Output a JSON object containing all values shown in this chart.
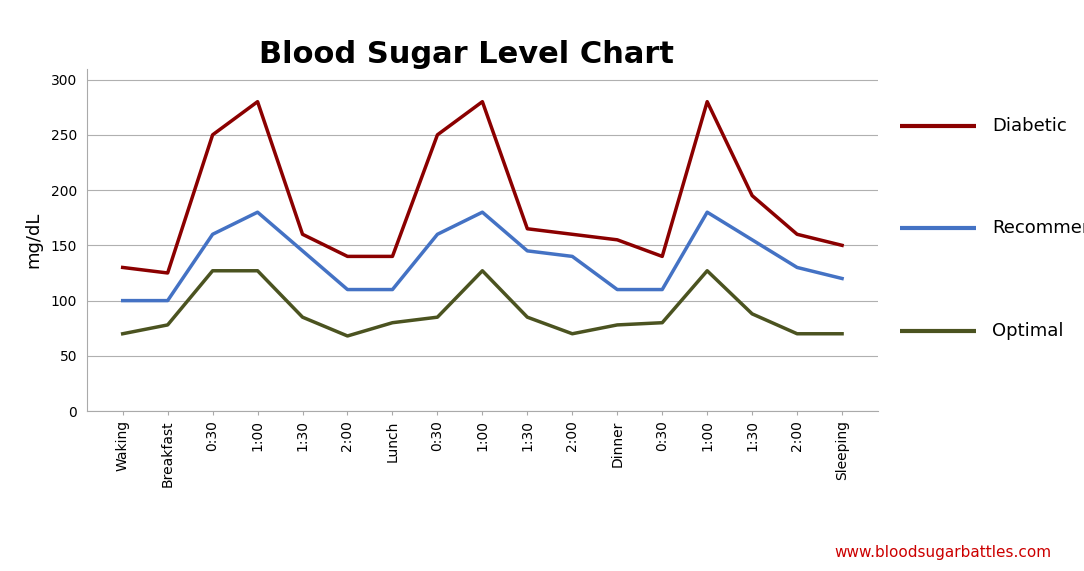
{
  "title": "Blood Sugar Level Chart",
  "title_fontsize": 22,
  "title_fontweight": "bold",
  "ylabel": "mg/dL",
  "ylabel_fontsize": 13,
  "background_color": "#ffffff",
  "plot_bg_color": "#ffffff",
  "x_labels": [
    "Waking",
    "Breakfast",
    "0:30",
    "1:00",
    "1:30",
    "2:00",
    "Lunch",
    "0:30",
    "1:00",
    "1:30",
    "2:00",
    "Dinner",
    "0:30",
    "1:00",
    "1:30",
    "2:00",
    "Sleeping"
  ],
  "diabetic": [
    130,
    125,
    250,
    280,
    160,
    140,
    140,
    250,
    280,
    165,
    160,
    155,
    140,
    280,
    195,
    160,
    150
  ],
  "recommended": [
    100,
    100,
    160,
    180,
    145,
    110,
    110,
    160,
    180,
    145,
    140,
    110,
    110,
    180,
    155,
    130,
    120
  ],
  "optimal": [
    70,
    78,
    127,
    127,
    85,
    68,
    80,
    85,
    127,
    85,
    70,
    78,
    80,
    127,
    88,
    70,
    70
  ],
  "diabetic_color": "#8B0000",
  "recommended_color": "#4472C4",
  "optimal_color": "#4B5320",
  "line_width": 2.5,
  "ylim": [
    0,
    310
  ],
  "yticks": [
    0,
    50,
    100,
    150,
    200,
    250,
    300
  ],
  "grid_color": "#b0b0b0",
  "legend_labels": [
    "Diabetic",
    "Recommended",
    "Optimal"
  ],
  "legend_fontsize": 13,
  "watermark": "www.bloodsugarbattles.com",
  "watermark_color": "#cc0000",
  "watermark_fontsize": 11
}
